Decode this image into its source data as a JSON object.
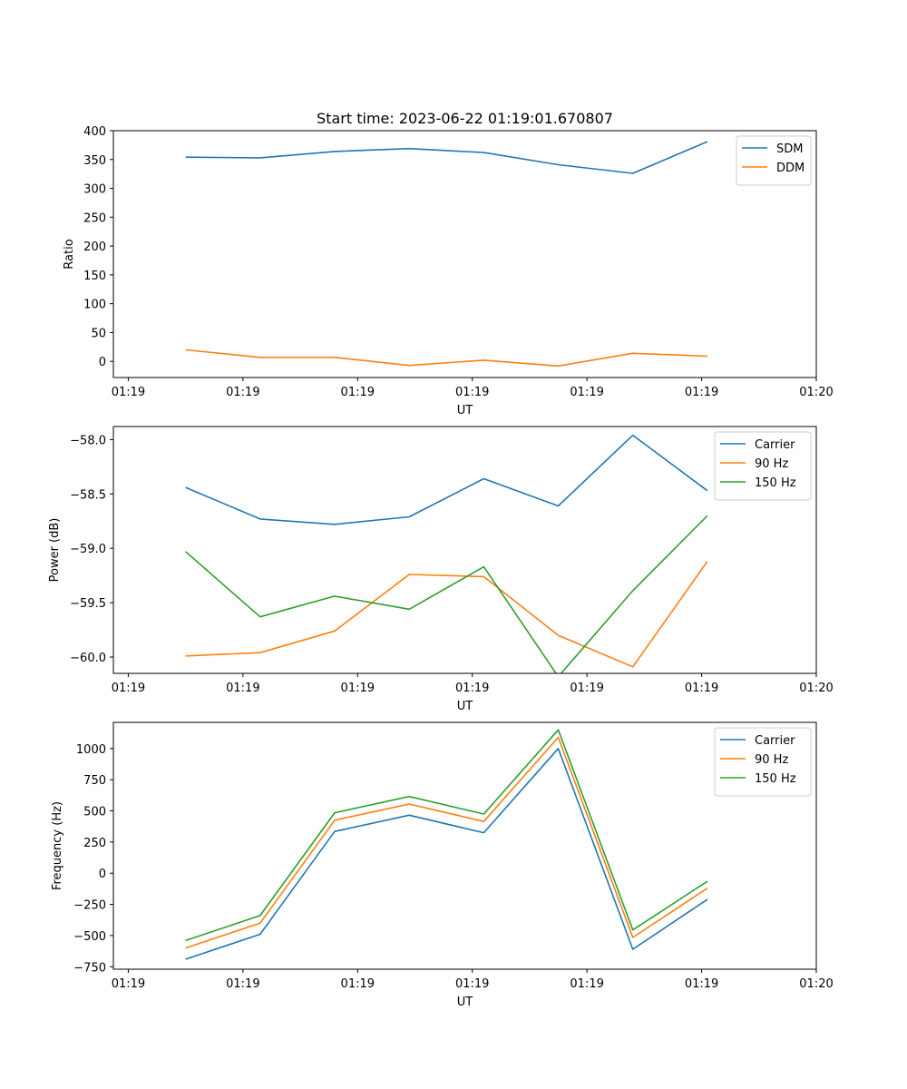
{
  "chart_data": [
    {
      "type": "line",
      "title": "Start time: 2023-06-22 01:19:01.670807",
      "xlabel": "UT",
      "ylabel": "Ratio",
      "x_ticks": [
        "01:19",
        "01:19",
        "01:19",
        "01:19",
        "01:19",
        "01:19",
        "01:20"
      ],
      "xlim": [
        -0.13,
        6.0
      ],
      "x": [
        0.5,
        1.15,
        1.8,
        2.45,
        3.1,
        3.75,
        4.4,
        5.05
      ],
      "ylim": [
        -28,
        400
      ],
      "y_ticks": [
        0,
        50,
        100,
        150,
        200,
        250,
        300,
        350,
        400
      ],
      "legend": "top-right",
      "series": [
        {
          "name": "SDM",
          "color": "#1f77b4",
          "values": [
            354,
            353,
            364,
            369,
            362,
            341,
            326,
            381
          ]
        },
        {
          "name": "DDM",
          "color": "#ff7f0e",
          "values": [
            20,
            7,
            7,
            -7,
            2,
            -8,
            14,
            9
          ]
        }
      ]
    },
    {
      "type": "line",
      "title": "",
      "xlabel": "UT",
      "ylabel": "Power (dB)",
      "x_ticks": [
        "01:19",
        "01:19",
        "01:19",
        "01:19",
        "01:19",
        "01:19",
        "01:20"
      ],
      "xlim": [
        -0.13,
        6.0
      ],
      "x": [
        0.5,
        1.15,
        1.8,
        2.45,
        3.1,
        3.75,
        4.4,
        5.05
      ],
      "ylim": [
        -60.15,
        -57.88
      ],
      "y_ticks": [
        "-60.0",
        "-59.5",
        "-59.0",
        "-58.5",
        "-58.0"
      ],
      "y_tick_values": [
        -60.0,
        -59.5,
        -59.0,
        -58.5,
        -58.0
      ],
      "legend": "top-right",
      "series": [
        {
          "name": "Carrier",
          "color": "#1f77b4",
          "values": [
            -58.44,
            -58.73,
            -58.78,
            -58.71,
            -58.36,
            -58.61,
            -57.96,
            -58.47
          ]
        },
        {
          "name": "90 Hz",
          "color": "#ff7f0e",
          "values": [
            -59.99,
            -59.96,
            -59.76,
            -59.24,
            -59.26,
            -59.8,
            -60.09,
            -59.12
          ]
        },
        {
          "name": "150 Hz",
          "color": "#2ca02c",
          "values": [
            -59.03,
            -59.63,
            -59.44,
            -59.56,
            -59.17,
            -60.18,
            -59.39,
            -58.7
          ]
        }
      ]
    },
    {
      "type": "line",
      "title": "",
      "xlabel": "UT",
      "ylabel": "Frequency (Hz)",
      "x_ticks": [
        "01:19",
        "01:19",
        "01:19",
        "01:19",
        "01:19",
        "01:19",
        "01:20"
      ],
      "xlim": [
        -0.13,
        6.0
      ],
      "x": [
        0.5,
        1.15,
        1.8,
        2.45,
        3.1,
        3.75,
        4.4,
        5.05
      ],
      "ylim": [
        -770,
        1210
      ],
      "y_ticks": [
        "−750",
        "−500",
        "−250",
        "0",
        "250",
        "500",
        "750",
        "1000"
      ],
      "y_tick_values": [
        -750,
        -500,
        -250,
        0,
        250,
        500,
        750,
        1000
      ],
      "legend": "top-right",
      "series": [
        {
          "name": "Carrier",
          "color": "#1f77b4",
          "values": [
            -690,
            -490,
            335,
            465,
            325,
            1000,
            -610,
            -210
          ]
        },
        {
          "name": "90 Hz",
          "color": "#ff7f0e",
          "values": [
            -600,
            -400,
            425,
            555,
            415,
            1090,
            -515,
            -120
          ]
        },
        {
          "name": "150 Hz",
          "color": "#2ca02c",
          "values": [
            -540,
            -340,
            485,
            615,
            475,
            1150,
            -455,
            -65
          ]
        }
      ]
    }
  ]
}
